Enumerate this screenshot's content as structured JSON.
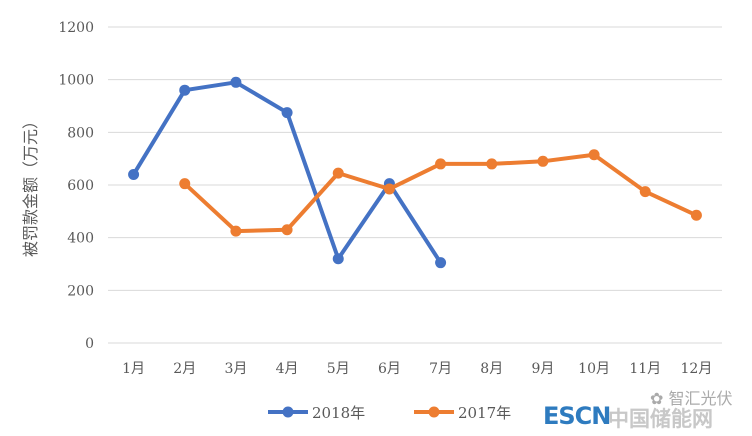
{
  "chart_data": {
    "type": "line",
    "title": "",
    "xlabel": "",
    "ylabel": "被罚款金额（万元）",
    "ylim": [
      0,
      1200
    ],
    "yticks": [
      0,
      200,
      400,
      600,
      800,
      1000,
      1200
    ],
    "categories": [
      "1月",
      "2月",
      "3月",
      "4月",
      "5月",
      "6月",
      "7月",
      "8月",
      "9月",
      "10月",
      "11月",
      "12月"
    ],
    "grid": true,
    "legend_position": "bottom",
    "series": [
      {
        "name": "2018年",
        "color": "#4472c4",
        "values": [
          640,
          960,
          990,
          875,
          320,
          605,
          305,
          null,
          null,
          null,
          null,
          null
        ]
      },
      {
        "name": "2017年",
        "color": "#ed7d31",
        "values": [
          null,
          605,
          425,
          430,
          645,
          585,
          680,
          680,
          690,
          715,
          575,
          485
        ]
      }
    ]
  },
  "watermark": {
    "escn": "ESCN",
    "cn": "中国储能网",
    "wechat": "智汇光伏"
  }
}
